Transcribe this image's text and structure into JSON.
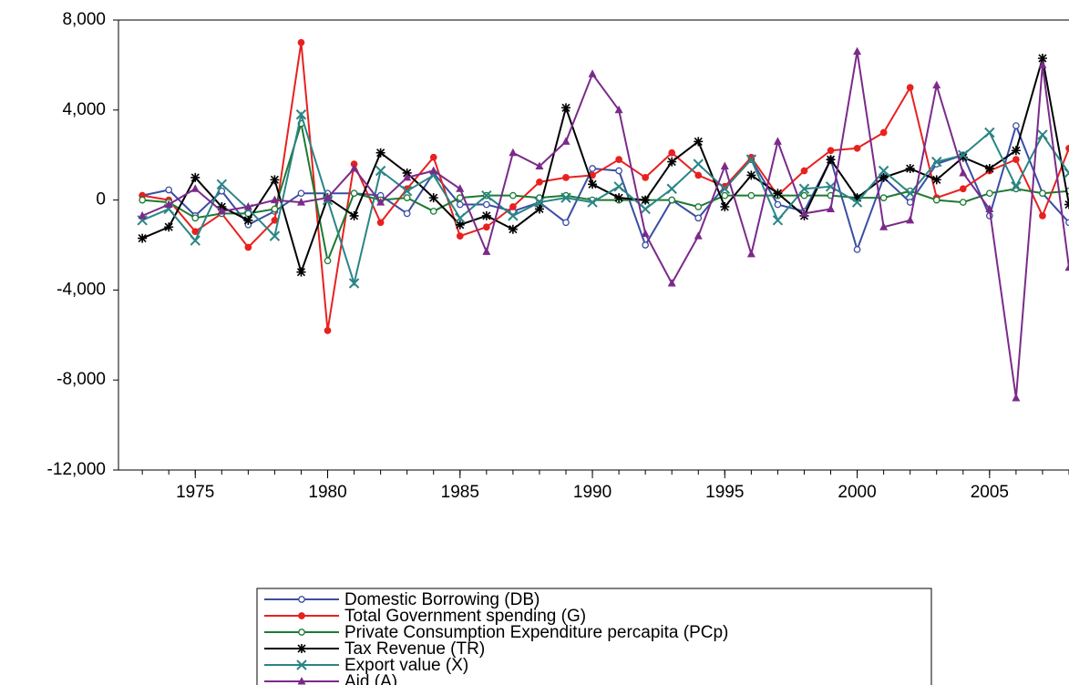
{
  "chart_data": {
    "type": "line",
    "x": [
      1973,
      1974,
      1975,
      1976,
      1977,
      1978,
      1979,
      1980,
      1981,
      1982,
      1983,
      1984,
      1985,
      1986,
      1987,
      1988,
      1989,
      1990,
      1991,
      1992,
      1993,
      1994,
      1995,
      1996,
      1997,
      1998,
      1999,
      2000,
      2001,
      2002,
      2003,
      2004,
      2005,
      2006,
      2007,
      2008
    ],
    "xlim": [
      1972.1,
      2008
    ],
    "xticks": [
      1975,
      1980,
      1985,
      1990,
      1995,
      2000,
      2005
    ],
    "ylim": [
      -12000,
      8000
    ],
    "yticks": [
      {
        "value": -12000,
        "label": "-12,000"
      },
      {
        "value": -8000,
        "label": "-8,000"
      },
      {
        "value": -4000,
        "label": "-4,000"
      },
      0,
      {
        "value": 4000,
        "label": "4,000"
      },
      {
        "value": 8000,
        "label": "8,000"
      }
    ],
    "legend": "bottom",
    "series": [
      {
        "name": "Domestic Borrowing (DB)",
        "color": "#3a4ea3",
        "marker": "circle-open",
        "values": [
          200,
          450,
          -700,
          400,
          -1100,
          -500,
          300,
          300,
          300,
          200,
          -600,
          1200,
          -200,
          -200,
          -500,
          -100,
          -1000,
          1400,
          1300,
          -2000,
          0,
          -800,
          600,
          1800,
          -200,
          -500,
          1800,
          -2200,
          1000,
          -100,
          1600,
          2000,
          -700,
          3300,
          300,
          -1000
        ]
      },
      {
        "name": "Total Government spending (G)",
        "color": "#e8211f",
        "marker": "circle",
        "values": [
          200,
          0,
          -1400,
          -600,
          -2100,
          -900,
          7000,
          -5800,
          1600,
          -1000,
          500,
          1900,
          -1600,
          -1200,
          -300,
          800,
          1000,
          1100,
          1800,
          1000,
          2100,
          1100,
          600,
          1900,
          200,
          1300,
          2200,
          2300,
          3000,
          5000,
          100,
          500,
          1300,
          1800,
          -700,
          2300
        ]
      },
      {
        "name": "Private Consumption Expenditure percapita (PCp)",
        "color": "#1d7a33",
        "marker": "circle-open",
        "values": [
          0,
          -100,
          -800,
          -600,
          -600,
          -400,
          3400,
          -2700,
          300,
          0,
          100,
          -500,
          100,
          200,
          200,
          100,
          200,
          0,
          0,
          0,
          0,
          -300,
          200,
          200,
          200,
          200,
          200,
          100,
          100,
          400,
          0,
          -100,
          300,
          500,
          300,
          400
        ]
      },
      {
        "name": "Tax Revenue (TR)",
        "color": "#000000",
        "marker": "star",
        "values": [
          -1700,
          -1200,
          1000,
          -300,
          -900,
          900,
          -3200,
          100,
          -700,
          2100,
          1200,
          100,
          -1100,
          -700,
          -1300,
          -400,
          4100,
          700,
          100,
          0,
          1700,
          2600,
          -300,
          1100,
          300,
          -700,
          1800,
          100,
          1000,
          1400,
          900,
          1900,
          1400,
          2200,
          6300,
          -200
        ]
      },
      {
        "name": "Export value (X)",
        "color": "#2a8585",
        "marker": "x",
        "values": [
          -900,
          -400,
          -1800,
          700,
          -400,
          -1600,
          3800,
          0,
          -3700,
          1300,
          400,
          1100,
          -800,
          200,
          -700,
          -100,
          100,
          -100,
          600,
          -400,
          500,
          1600,
          500,
          1800,
          -900,
          500,
          600,
          -100,
          1300,
          300,
          1700,
          2000,
          3000,
          600,
          2900,
          1200
        ]
      },
      {
        "name": "Aid (A)",
        "color": "#7b2a8a",
        "marker": "triangle",
        "values": [
          -700,
          -200,
          500,
          -500,
          -300,
          0,
          -100,
          100,
          1400,
          -100,
          1000,
          1300,
          500,
          -2300,
          2100,
          1500,
          2600,
          5600,
          4000,
          -1500,
          -3700,
          -1600,
          1500,
          -2400,
          2600,
          -600,
          -400,
          6600,
          -1200,
          -900,
          5100,
          1200,
          -400,
          -8800,
          6000,
          -3000
        ]
      }
    ]
  }
}
